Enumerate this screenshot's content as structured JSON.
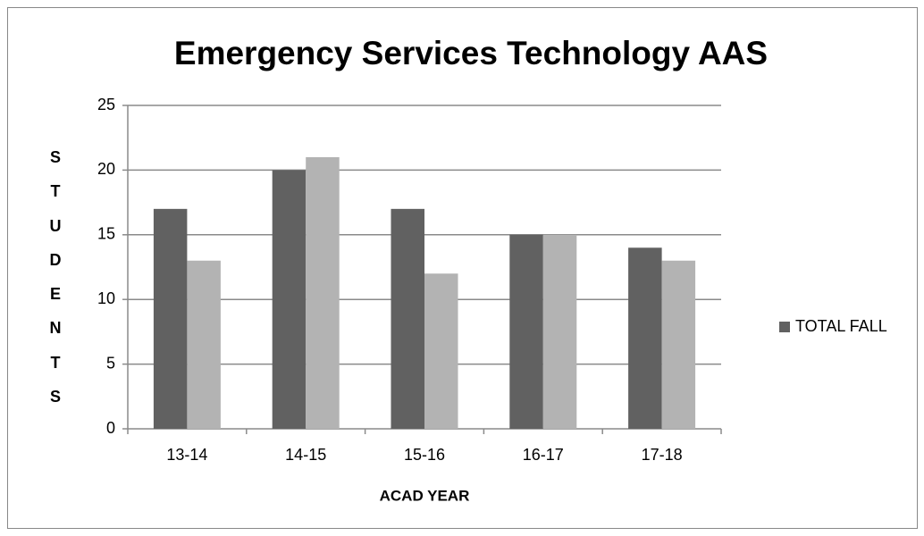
{
  "chart_data": {
    "type": "bar",
    "title": "Emergency Services Technology AAS",
    "categories": [
      "13-14",
      "14-15",
      "15-16",
      "16-17",
      "17-18"
    ],
    "series": [
      {
        "name": "TOTAL FALL",
        "color": "#616161",
        "values": [
          17,
          20,
          17,
          15,
          14
        ]
      },
      {
        "color": "#b3b3b3",
        "values": [
          13,
          21,
          12,
          15,
          13
        ]
      }
    ],
    "ylim": [
      0,
      25
    ],
    "yticks": [
      0,
      5,
      10,
      15,
      20,
      25
    ],
    "grid": true,
    "y_label": "STUDENTS",
    "x_label": "ACAD YEAR",
    "legend": "right"
  }
}
